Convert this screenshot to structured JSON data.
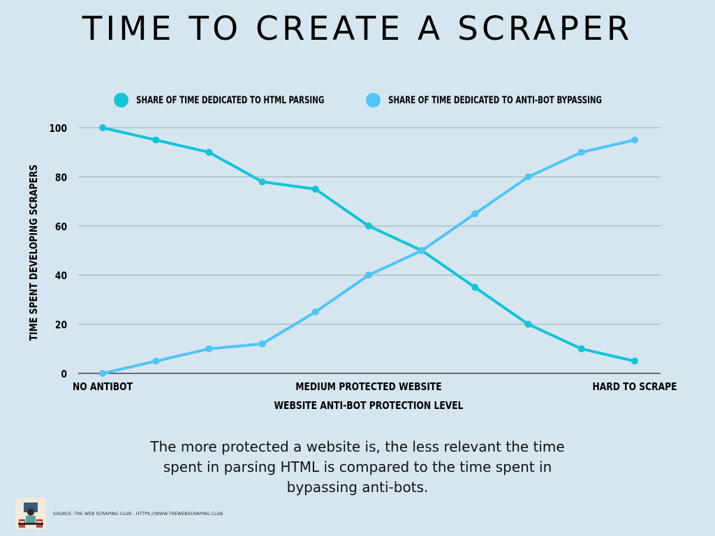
{
  "title": "TIME TO CREATE A SCRAPER",
  "legend": {
    "html": "SHARE OF TIME DEDICATED TO HTML PARSING",
    "anti": "SHARE OF TIME DEDICATED TO ANTI-BOT BYPASSING"
  },
  "colors": {
    "background": "#d5e6f0",
    "html_parsing": "#14c3d6",
    "anti_bot": "#52c4f5",
    "grid": "#8aa0ad"
  },
  "chart_data": {
    "type": "line",
    "title": "TIME TO CREATE A SCRAPER",
    "xlabel": "WEBSITE ANTI-BOT PROTECTION LEVEL",
    "ylabel": "TIME SPENT DEVELOPING SCRAPERS",
    "x": [
      1,
      2,
      3,
      4,
      5,
      6,
      7,
      8,
      9,
      10,
      11
    ],
    "x_tick_labels": [
      {
        "x": 1,
        "label": "NO ANTIBOT"
      },
      {
        "x": 6,
        "label": "MEDIUM PROTECTED WEBSITE"
      },
      {
        "x": 11,
        "label": "HARD TO SCRAPE"
      }
    ],
    "yticks": [
      0,
      20,
      40,
      60,
      80,
      100
    ],
    "ylim": [
      0,
      100
    ],
    "grid": true,
    "legend_position": "top",
    "series": [
      {
        "name": "SHARE OF TIME DEDICATED TO HTML PARSING",
        "values": [
          100,
          95,
          90,
          78,
          75,
          60,
          50,
          35,
          20,
          10,
          5
        ]
      },
      {
        "name": "SHARE OF TIME DEDICATED TO ANTI-BOT BYPASSING",
        "values": [
          0,
          5,
          10,
          12,
          25,
          40,
          50,
          65,
          80,
          90,
          95
        ]
      }
    ]
  },
  "caption": "The more protected a website is, the less relevant the time spent in parsing HTML is compared to the time spent in bypassing anti-bots.",
  "source": "SOURCE: THE WEB SCRAPING CLUB - HTTPS://WWW.THEWEBSCRAPING.CLUB"
}
